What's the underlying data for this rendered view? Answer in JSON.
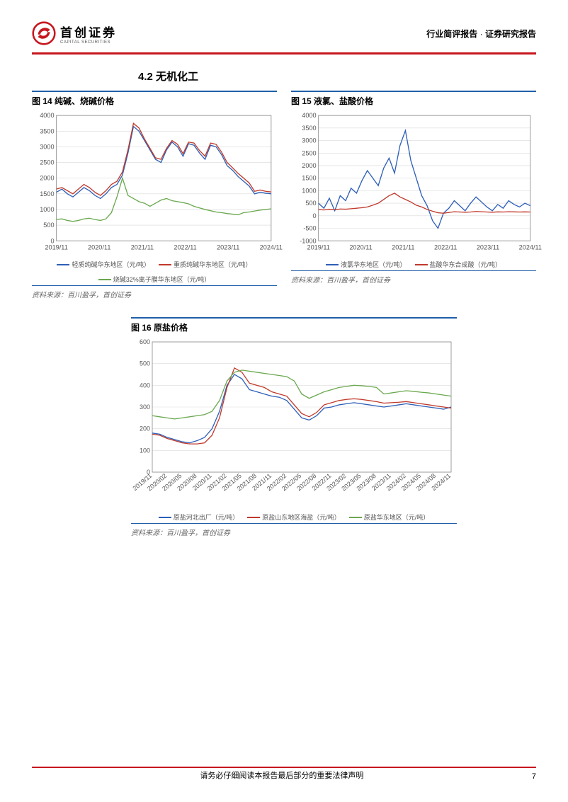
{
  "colors": {
    "brand_red": "#c7161e",
    "accent_blue": "#1f5fa8",
    "grid": "#d9d9d9",
    "axis": "#888888",
    "text": "#000000",
    "series_blue": "#2d5fb8",
    "series_red": "#c0392b",
    "series_green": "#6aa84f"
  },
  "header": {
    "logo_cn": "首创证券",
    "logo_en": "CAPITAL SECURITIES",
    "right_a": "行业简评报告",
    "dot": "·",
    "right_b": "证券研究报告"
  },
  "section_title": "4.2 无机化工",
  "chart14": {
    "title": "图 14 纯碱、烧碱价格",
    "source": "资料来源：百川盈孚，首创证券",
    "ylim": [
      0,
      4000
    ],
    "ytick_step": 500,
    "x_labels": [
      "2019/11",
      "2020/11",
      "2021/11",
      "2022/11",
      "2023/11",
      "2024/11"
    ],
    "legend": [
      {
        "label": "轻质纯碱华东地区（元/吨）",
        "color": "#2d5fb8"
      },
      {
        "label": "重质纯碱华东地区（元/吨）",
        "color": "#c0392b"
      },
      {
        "label": "烧碱32%离子膜华东地区（元/吨）",
        "color": "#6aa84f"
      }
    ],
    "series": {
      "blue": [
        1550,
        1650,
        1500,
        1400,
        1550,
        1700,
        1600,
        1450,
        1350,
        1500,
        1700,
        1800,
        2100,
        2800,
        3650,
        3500,
        3200,
        2900,
        2600,
        2500,
        2900,
        3150,
        3000,
        2700,
        3100,
        3050,
        2800,
        2600,
        3050,
        3000,
        2750,
        2400,
        2250,
        2050,
        1900,
        1750,
        1500,
        1550,
        1520,
        1500
      ],
      "red": [
        1650,
        1700,
        1600,
        1500,
        1650,
        1800,
        1700,
        1550,
        1450,
        1600,
        1800,
        1900,
        2200,
        2900,
        3750,
        3600,
        3250,
        2950,
        2650,
        2600,
        2950,
        3200,
        3080,
        2780,
        3150,
        3120,
        2880,
        2700,
        3120,
        3080,
        2830,
        2500,
        2330,
        2150,
        2000,
        1850,
        1580,
        1620,
        1580,
        1560
      ],
      "green": [
        680,
        700,
        650,
        620,
        650,
        700,
        720,
        680,
        650,
        700,
        900,
        1400,
        2000,
        1450,
        1350,
        1250,
        1200,
        1100,
        1200,
        1300,
        1350,
        1280,
        1250,
        1220,
        1180,
        1100,
        1050,
        1000,
        960,
        920,
        900,
        870,
        850,
        830,
        900,
        920,
        950,
        980,
        1000,
        1020
      ]
    }
  },
  "chart15": {
    "title": "图 15 液氯、盐酸价格",
    "source": "资料来源：百川盈孚，首创证券",
    "ylim": [
      -1000,
      4000
    ],
    "ytick_step": 500,
    "x_labels": [
      "2019/11",
      "2020/11",
      "2021/11",
      "2022/11",
      "2023/11",
      "2024/11"
    ],
    "legend": [
      {
        "label": "液氯华东地区（元/吨）",
        "color": "#2d5fb8"
      },
      {
        "label": "盐酸华东合成酸（元/吨）",
        "color": "#c0392b"
      }
    ],
    "series": {
      "blue": [
        500,
        300,
        700,
        200,
        800,
        600,
        1100,
        900,
        1400,
        1800,
        1500,
        1200,
        1900,
        2300,
        1700,
        2800,
        3400,
        2200,
        1500,
        800,
        400,
        -200,
        -500,
        100,
        300,
        600,
        400,
        200,
        500,
        750,
        550,
        350,
        200,
        450,
        300,
        600,
        450,
        350,
        500,
        400
      ],
      "red": [
        250,
        230,
        260,
        240,
        270,
        260,
        280,
        300,
        320,
        350,
        420,
        500,
        650,
        800,
        900,
        750,
        650,
        550,
        420,
        350,
        250,
        180,
        120,
        100,
        130,
        160,
        150,
        140,
        150,
        170,
        160,
        150,
        140,
        155,
        150,
        160,
        155,
        150,
        155,
        150
      ]
    }
  },
  "chart16": {
    "title": "图 16 原盐价格",
    "source": "资料来源：百川盈孚，首创证券",
    "ylim": [
      0,
      600
    ],
    "ytick_step": 100,
    "x_labels": [
      "2019/11",
      "2020/02",
      "2020/05",
      "2020/08",
      "2020/11",
      "2021/02",
      "2021/05",
      "2021/08",
      "2021/11",
      "2022/02",
      "2022/05",
      "2022/08",
      "2022/11",
      "2023/02",
      "2023/05",
      "2023/08",
      "2023/11",
      "2024/02",
      "2024/05",
      "2024/08",
      "2024/11"
    ],
    "legend": [
      {
        "label": "原盐河北出厂（元/吨）",
        "color": "#2d5fb8"
      },
      {
        "label": "原盐山东地区海盐（元/吨）",
        "color": "#c0392b"
      },
      {
        "label": "原盐华东地区（元/吨）",
        "color": "#6aa84f"
      }
    ],
    "series": {
      "blue": [
        180,
        175,
        160,
        150,
        140,
        135,
        145,
        160,
        200,
        280,
        400,
        450,
        430,
        380,
        370,
        360,
        350,
        345,
        330,
        290,
        250,
        240,
        260,
        295,
        300,
        310,
        315,
        320,
        315,
        310,
        305,
        300,
        305,
        310,
        315,
        310,
        305,
        300,
        295,
        290,
        300
      ],
      "red": [
        175,
        170,
        155,
        145,
        135,
        130,
        130,
        135,
        170,
        250,
        390,
        480,
        460,
        410,
        400,
        390,
        370,
        360,
        350,
        310,
        270,
        255,
        275,
        310,
        320,
        330,
        335,
        338,
        335,
        330,
        325,
        318,
        320,
        322,
        325,
        320,
        315,
        310,
        305,
        300,
        295
      ],
      "green": [
        260,
        255,
        250,
        245,
        250,
        255,
        260,
        265,
        280,
        330,
        420,
        460,
        470,
        465,
        460,
        455,
        450,
        445,
        440,
        420,
        360,
        340,
        355,
        370,
        380,
        390,
        395,
        400,
        398,
        395,
        390,
        360,
        365,
        370,
        375,
        372,
        368,
        365,
        360,
        355,
        350
      ]
    }
  },
  "footer": {
    "disclaimer": "请务必仔细阅读本报告最后部分的重要法律声明",
    "page": "7"
  }
}
